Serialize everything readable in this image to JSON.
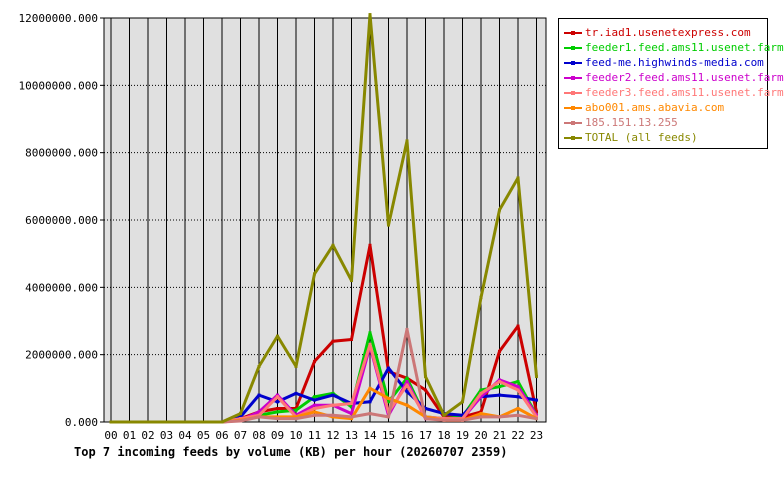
{
  "chart_data": {
    "type": "line",
    "title": "Top 7 incoming feeds by volume (KB) per hour (20260707 2359)",
    "xlabel": "",
    "ylabel": "",
    "categories": [
      "00",
      "01",
      "02",
      "03",
      "04",
      "05",
      "06",
      "07",
      "08",
      "09",
      "10",
      "11",
      "12",
      "13",
      "14",
      "15",
      "16",
      "17",
      "18",
      "19",
      "20",
      "21",
      "22",
      "23"
    ],
    "yticks": [
      "0.000",
      "2000000.000",
      "4000000.000",
      "6000000.000",
      "8000000.000",
      "10000000.000",
      "12000000.000"
    ],
    "ylim": [
      0,
      12000000
    ],
    "grid": true,
    "legend_position": "right",
    "series": [
      {
        "name": "tr.iad1.usenetexpress.com",
        "color": "#cc0000",
        "values": [
          0,
          0,
          0,
          0,
          0,
          0,
          0,
          100000,
          300000,
          400000,
          400000,
          1800000,
          2400000,
          2450000,
          5250000,
          1500000,
          1300000,
          950000,
          150000,
          150000,
          300000,
          2100000,
          2850000,
          300000
        ]
      },
      {
        "name": "feeder1.feed.ams11.usenet.farm",
        "color": "#00cc00",
        "values": [
          0,
          0,
          0,
          0,
          0,
          0,
          0,
          80000,
          200000,
          300000,
          350000,
          750000,
          850000,
          450000,
          2650000,
          600000,
          1300000,
          150000,
          100000,
          150000,
          950000,
          1050000,
          1200000,
          200000
        ]
      },
      {
        "name": "feed-me.highwinds-media.com",
        "color": "#0000cc",
        "values": [
          0,
          0,
          0,
          0,
          0,
          0,
          0,
          150000,
          800000,
          600000,
          850000,
          650000,
          800000,
          550000,
          600000,
          1600000,
          900000,
          400000,
          250000,
          200000,
          750000,
          800000,
          750000,
          650000
        ]
      },
      {
        "name": "feeder2.feed.ams11.usenet.farm",
        "color": "#cc00cc",
        "values": [
          0,
          0,
          0,
          0,
          0,
          0,
          0,
          50000,
          300000,
          800000,
          200000,
          500000,
          500000,
          250000,
          2250000,
          200000,
          1200000,
          100000,
          100000,
          100000,
          750000,
          1250000,
          1050000,
          200000
        ]
      },
      {
        "name": "feeder3.feed.ams11.usenet.farm",
        "color": "#ff7777",
        "values": [
          0,
          0,
          0,
          0,
          0,
          0,
          0,
          100000,
          200000,
          750000,
          150000,
          400000,
          500000,
          550000,
          2300000,
          300000,
          1100000,
          150000,
          100000,
          100000,
          850000,
          1200000,
          950000,
          150000
        ]
      },
      {
        "name": "abo001.ams.abavia.com",
        "color": "#ff8800",
        "values": [
          0,
          0,
          0,
          0,
          0,
          0,
          0,
          50000,
          150000,
          150000,
          150000,
          300000,
          150000,
          100000,
          1000000,
          700000,
          500000,
          150000,
          50000,
          50000,
          250000,
          150000,
          400000,
          100000
        ]
      },
      {
        "name": "185.151.13.255",
        "color": "#cc7777",
        "values": [
          0,
          0,
          0,
          0,
          0,
          0,
          0,
          30000,
          150000,
          100000,
          100000,
          200000,
          200000,
          150000,
          250000,
          150000,
          2750000,
          100000,
          50000,
          50000,
          150000,
          150000,
          200000,
          100000
        ]
      },
      {
        "name": "TOTAL (all feeds)",
        "color": "#888800",
        "values": [
          0,
          0,
          0,
          0,
          0,
          0,
          0,
          250000,
          1650000,
          2550000,
          1650000,
          4400000,
          5250000,
          4200000,
          12100000,
          5850000,
          8350000,
          1350000,
          200000,
          600000,
          3700000,
          6300000,
          7250000,
          1350000
        ]
      }
    ]
  }
}
